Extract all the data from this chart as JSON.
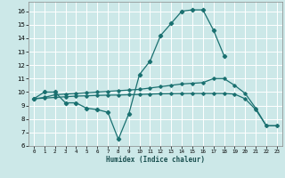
{
  "xlabel": "Humidex (Indice chaleur)",
  "bg_color": "#cce8e8",
  "grid_color": "#ffffff",
  "line_color": "#1a7070",
  "xlim": [
    -0.5,
    23.5
  ],
  "ylim": [
    6.0,
    16.7
  ],
  "yticks": [
    6,
    7,
    8,
    9,
    10,
    11,
    12,
    13,
    14,
    15,
    16
  ],
  "xticks": [
    0,
    1,
    2,
    3,
    4,
    5,
    6,
    7,
    8,
    9,
    10,
    11,
    12,
    13,
    14,
    15,
    16,
    17,
    18,
    19,
    20,
    21,
    22,
    23
  ],
  "line1_x": [
    0,
    1,
    2,
    3,
    4,
    5,
    6,
    7,
    8,
    9,
    10,
    11,
    12,
    13,
    14,
    15,
    16,
    17,
    18
  ],
  "line1_y": [
    9.5,
    10.0,
    10.0,
    9.2,
    9.2,
    8.8,
    8.7,
    8.5,
    6.5,
    8.4,
    11.3,
    12.3,
    14.2,
    15.1,
    16.0,
    16.1,
    16.1,
    14.6,
    12.7
  ],
  "line2_x": [
    0,
    1,
    2,
    3,
    4,
    5,
    6,
    7,
    8,
    9,
    10,
    11,
    12,
    13,
    14,
    15,
    16,
    17,
    18,
    19,
    20,
    21,
    22,
    23
  ],
  "line2_y": [
    9.5,
    9.6,
    9.8,
    9.85,
    9.9,
    9.95,
    10.0,
    10.05,
    10.1,
    10.15,
    10.2,
    10.3,
    10.4,
    10.5,
    10.6,
    10.65,
    10.7,
    11.0,
    11.0,
    10.5,
    9.9,
    8.8,
    7.5,
    7.5
  ],
  "line3_x": [
    0,
    1,
    2,
    3,
    4,
    5,
    6,
    7,
    8,
    9,
    10,
    11,
    12,
    13,
    14,
    15,
    16,
    17,
    18,
    19,
    20,
    21,
    22,
    23
  ],
  "line3_y": [
    9.5,
    9.55,
    9.6,
    9.65,
    9.7,
    9.72,
    9.75,
    9.77,
    9.78,
    9.8,
    9.82,
    9.85,
    9.87,
    9.88,
    9.89,
    9.9,
    9.9,
    9.9,
    9.9,
    9.85,
    9.5,
    8.7,
    7.5,
    7.5
  ]
}
